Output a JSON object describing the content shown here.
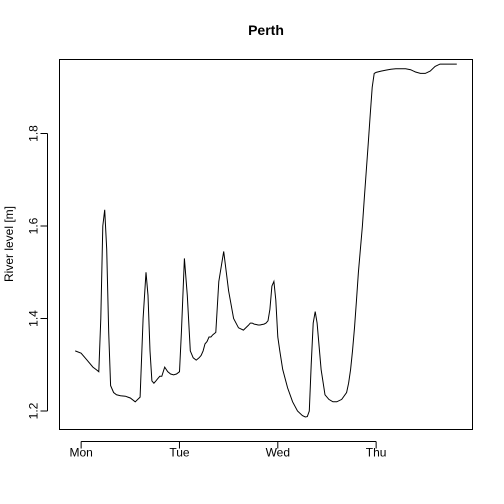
{
  "chart_data": {
    "type": "line",
    "title": "Perth",
    "xlabel": "",
    "ylabel": "River level [m]",
    "x_ticks": [
      {
        "value": 0,
        "label": "Mon"
      },
      {
        "value": 1,
        "label": "Tue"
      },
      {
        "value": 2,
        "label": "Wed"
      },
      {
        "value": 3,
        "label": "Thu"
      }
    ],
    "y_ticks": [
      1.2,
      1.4,
      1.6,
      1.8
    ],
    "y_tick_labels": [
      "1.2",
      "1.4",
      "1.6",
      "1.8"
    ],
    "xlim": [
      -0.22,
      3.98
    ],
    "ylim": [
      1.16,
      1.96
    ],
    "grid": false,
    "legend": "none",
    "series": [
      {
        "x": [
          -0.06,
          0.0,
          0.06,
          0.12,
          0.15,
          0.18,
          0.2,
          0.22,
          0.24,
          0.26,
          0.28,
          0.3,
          0.33,
          0.36,
          0.4,
          0.45,
          0.5,
          0.55,
          0.6,
          0.63,
          0.66,
          0.68,
          0.7,
          0.72,
          0.74,
          0.76,
          0.78,
          0.8,
          0.82,
          0.85,
          0.88,
          0.91,
          0.94,
          0.97,
          1.0,
          1.02,
          1.05,
          1.08,
          1.11,
          1.14,
          1.17,
          1.2,
          1.22,
          1.24,
          1.26,
          1.28,
          1.3,
          1.32,
          1.34,
          1.37,
          1.4,
          1.45,
          1.5,
          1.55,
          1.6,
          1.65,
          1.7,
          1.72,
          1.74,
          1.76,
          1.78,
          1.8,
          1.82,
          1.84,
          1.86,
          1.88,
          1.9,
          1.92,
          1.94,
          1.96,
          1.98,
          2.0,
          2.02,
          2.05,
          2.1,
          2.15,
          2.2,
          2.25,
          2.28,
          2.3,
          2.32,
          2.34,
          2.36,
          2.38,
          2.4,
          2.44,
          2.48,
          2.52,
          2.56,
          2.6,
          2.65,
          2.7,
          2.72,
          2.74,
          2.76,
          2.78,
          2.8,
          2.82,
          2.84,
          2.86,
          2.88,
          2.9,
          2.92,
          2.94,
          2.96,
          2.98,
          3.0,
          3.05,
          3.1,
          3.15,
          3.2,
          3.25,
          3.3,
          3.35,
          3.38,
          3.4,
          3.45,
          3.5,
          3.55,
          3.6,
          3.65,
          3.7,
          3.75,
          3.78,
          3.8,
          3.82
        ],
        "values": [
          1.33,
          1.325,
          1.31,
          1.295,
          1.29,
          1.285,
          1.4,
          1.6,
          1.635,
          1.55,
          1.37,
          1.255,
          1.24,
          1.235,
          1.233,
          1.232,
          1.228,
          1.22,
          1.23,
          1.4,
          1.5,
          1.45,
          1.33,
          1.265,
          1.26,
          1.265,
          1.27,
          1.275,
          1.275,
          1.295,
          1.285,
          1.28,
          1.278,
          1.28,
          1.285,
          1.37,
          1.53,
          1.45,
          1.33,
          1.315,
          1.31,
          1.315,
          1.32,
          1.33,
          1.345,
          1.35,
          1.36,
          1.36,
          1.365,
          1.37,
          1.48,
          1.545,
          1.46,
          1.4,
          1.38,
          1.375,
          1.385,
          1.39,
          1.39,
          1.388,
          1.387,
          1.386,
          1.386,
          1.387,
          1.388,
          1.39,
          1.395,
          1.42,
          1.47,
          1.48,
          1.44,
          1.36,
          1.33,
          1.29,
          1.25,
          1.22,
          1.2,
          1.19,
          1.187,
          1.188,
          1.2,
          1.3,
          1.39,
          1.415,
          1.39,
          1.29,
          1.235,
          1.225,
          1.22,
          1.22,
          1.225,
          1.24,
          1.26,
          1.29,
          1.33,
          1.38,
          1.44,
          1.5,
          1.55,
          1.6,
          1.66,
          1.72,
          1.78,
          1.84,
          1.9,
          1.93,
          1.932,
          1.935,
          1.937,
          1.939,
          1.94,
          1.94,
          1.94,
          1.938,
          1.935,
          1.933,
          1.93,
          1.93,
          1.935,
          1.945,
          1.95,
          1.95,
          1.95,
          1.95,
          1.95,
          1.95
        ]
      }
    ]
  }
}
